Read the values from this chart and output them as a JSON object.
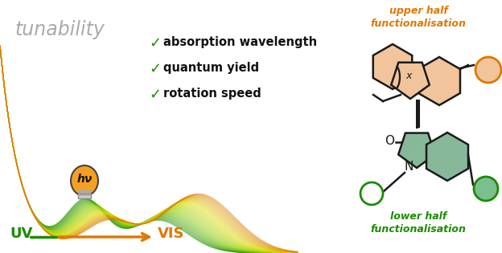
{
  "bg_color": "#ffffff",
  "green_color": "#1a8c00",
  "orange_color": "#e07800",
  "gray_color": "#aaaaaa",
  "black_color": "#111111",
  "upper_fill": "#f2c49b",
  "lower_fill": "#87b89a",
  "orange_circle_fill": "#f2c49b",
  "green_circle_fill": "#7bbf8e",
  "line_color": "#1a1a1a",
  "title": "tunability",
  "text_items": [
    "absorption wavelength",
    "quantum yield",
    "rotation speed"
  ],
  "upper_label": "upper half\nfunctionalisation",
  "lower_label": "lower half\nfunctionalisation",
  "uv_label": "UV",
  "vis_label": "VIS",
  "hv_label": "hν",
  "n_curves": 50,
  "curve_alpha": 0.5,
  "curve_lw": 0.8
}
